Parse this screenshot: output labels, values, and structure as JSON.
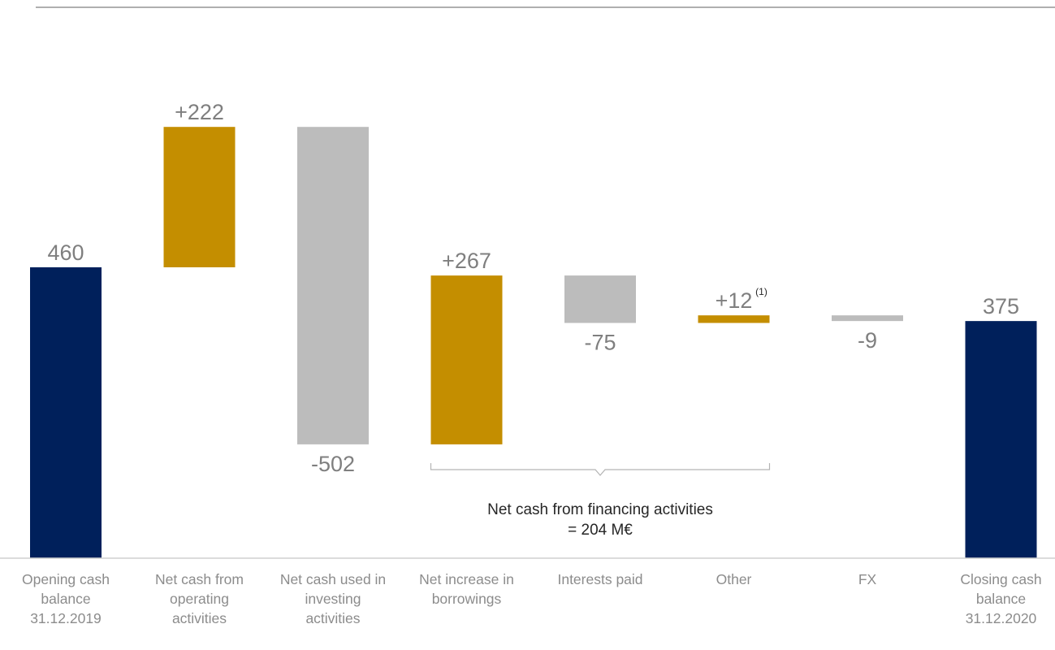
{
  "chart_data": {
    "type": "bar",
    "subtype": "waterfall",
    "grid": false,
    "colors": {
      "total": "#00205b",
      "increase": "#c48e00",
      "decrease": "#bcbcbc",
      "text": "#7f7f7f",
      "axis": "#d0d0d0"
    },
    "categories": [
      [
        "Opening cash",
        "balance",
        "31.12.2019"
      ],
      [
        "Net cash from",
        "operating",
        "activities"
      ],
      [
        "Net cash used in",
        "investing",
        "activities"
      ],
      [
        "Net increase in",
        "borrowings"
      ],
      [
        "Interests paid"
      ],
      [
        "Other"
      ],
      [
        "FX"
      ],
      [
        "Closing cash",
        "balance",
        "31.12.2020"
      ]
    ],
    "steps": [
      {
        "kind": "total",
        "value": 460,
        "label": "460",
        "color": "#00205b"
      },
      {
        "kind": "delta",
        "value": 222,
        "label": "+222",
        "color": "#c48e00"
      },
      {
        "kind": "delta",
        "value": -502,
        "label": "-502",
        "color": "#bcbcbc"
      },
      {
        "kind": "delta",
        "value": 267,
        "label": "+267",
        "color": "#c48e00"
      },
      {
        "kind": "delta",
        "value": -75,
        "label": "-75",
        "color": "#bcbcbc"
      },
      {
        "kind": "delta",
        "value": 12,
        "label": "+12",
        "footnote": "(1)",
        "color": "#c48e00"
      },
      {
        "kind": "delta",
        "value": -9,
        "label": "-9",
        "color": "#bcbcbc"
      },
      {
        "kind": "total",
        "value": 375,
        "label": "375",
        "color": "#00205b"
      }
    ],
    "bracket": {
      "from_step": 3,
      "to_step": 5,
      "lines": [
        "Net cash from financing activities",
        "= 204 M€"
      ]
    }
  }
}
